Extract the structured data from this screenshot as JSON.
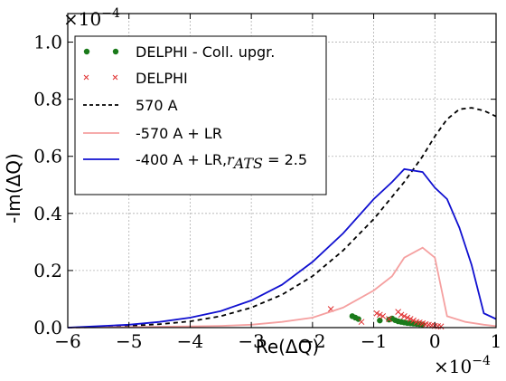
{
  "chart_data": {
    "type": "line",
    "xlabel": "Re(ΔQ)",
    "ylabel": "-Im(ΔQ)",
    "x_exponent": "×10",
    "x_exponent_power": "−4",
    "y_exponent": "×10",
    "y_exponent_power": "−4",
    "xlim": [
      -6,
      1
    ],
    "ylim": [
      0,
      1.1
    ],
    "xticks": [
      -6,
      -5,
      -4,
      -3,
      -2,
      -1,
      0,
      1
    ],
    "xtick_labels": [
      "−6",
      "−5",
      "−4",
      "−3",
      "−2",
      "−1",
      "0",
      "1"
    ],
    "yticks": [
      0.0,
      0.2,
      0.4,
      0.6,
      0.8,
      1.0
    ],
    "ytick_labels": [
      "0.0",
      "0.2",
      "0.4",
      "0.6",
      "0.8",
      "1.0"
    ],
    "grid": true,
    "legend_position": "top-left",
    "series": [
      {
        "name": "DELPHI - Coll. upgr.",
        "kind": "scatter",
        "marker": "dot",
        "color": "#1a7a1a",
        "x": [
          -1.35,
          -1.3,
          -1.25,
          -0.9,
          -0.75,
          -0.7,
          -0.65,
          -0.6,
          -0.55,
          -0.5,
          -0.45,
          -0.4,
          -0.35,
          -0.3,
          -0.25,
          -0.2
        ],
        "y": [
          0.04,
          0.035,
          0.03,
          0.025,
          0.028,
          0.032,
          0.026,
          0.022,
          0.02,
          0.018,
          0.016,
          0.015,
          0.014,
          0.013,
          0.012,
          0.011
        ]
      },
      {
        "name": "DELPHI",
        "kind": "scatter",
        "marker": "cross",
        "color": "#e03030",
        "x": [
          -1.7,
          -1.2,
          -0.95,
          -0.9,
          -0.85,
          -0.75,
          -0.6,
          -0.55,
          -0.5,
          -0.45,
          -0.4,
          -0.35,
          -0.3,
          -0.25,
          -0.2,
          -0.15,
          -0.1,
          -0.05,
          0.0,
          0.05,
          0.1
        ],
        "y": [
          0.065,
          0.02,
          0.05,
          0.045,
          0.04,
          0.03,
          0.055,
          0.045,
          0.04,
          0.035,
          0.03,
          0.025,
          0.02,
          0.018,
          0.015,
          0.012,
          0.01,
          0.008,
          0.006,
          0.005,
          0.004
        ]
      },
      {
        "name": "570 A",
        "kind": "line",
        "style": "dashed",
        "color": "#000000",
        "x": [
          -6,
          -5.5,
          -5,
          -4.5,
          -4,
          -3.5,
          -3,
          -2.5,
          -2,
          -1.5,
          -1,
          -0.5,
          -0.2,
          0,
          0.2,
          0.4,
          0.6,
          0.8,
          1.0
        ],
        "y": [
          0.0,
          0.002,
          0.006,
          0.012,
          0.022,
          0.04,
          0.07,
          0.115,
          0.18,
          0.27,
          0.38,
          0.51,
          0.6,
          0.67,
          0.73,
          0.765,
          0.77,
          0.76,
          0.74
        ]
      },
      {
        "name": "-570 A + LR",
        "kind": "line",
        "style": "solid",
        "color": "#f5a0a0",
        "x": [
          -6,
          -5,
          -4,
          -3.5,
          -3,
          -2.5,
          -2,
          -1.5,
          -1,
          -0.7,
          -0.5,
          -0.2,
          0,
          0.2,
          0.5,
          0.8,
          1.0
        ],
        "y": [
          0.0,
          0.002,
          0.004,
          0.006,
          0.01,
          0.02,
          0.035,
          0.07,
          0.13,
          0.18,
          0.245,
          0.28,
          0.245,
          0.04,
          0.02,
          0.01,
          0.005
        ]
      },
      {
        "name": "-400 A + LR,",
        "name_math": "r_ATS = 2.5",
        "kind": "line",
        "style": "solid",
        "color": "#1010d0",
        "x": [
          -6,
          -5,
          -4.5,
          -4,
          -3.5,
          -3,
          -2.5,
          -2,
          -1.5,
          -1,
          -0.7,
          -0.5,
          -0.2,
          0,
          0.2,
          0.4,
          0.6,
          0.8,
          1.0
        ],
        "y": [
          0.0,
          0.01,
          0.02,
          0.035,
          0.058,
          0.095,
          0.15,
          0.23,
          0.33,
          0.45,
          0.51,
          0.555,
          0.545,
          0.49,
          0.45,
          0.35,
          0.22,
          0.05,
          0.03
        ]
      }
    ]
  },
  "legend": {
    "items": [
      {
        "label": "DELPHI - Coll. upgr."
      },
      {
        "label": "DELPHI"
      },
      {
        "label": "570 A"
      },
      {
        "label": "-570 A + LR"
      },
      {
        "label": "-400 A + LR,",
        "math": "r",
        "math_sub": "ATS",
        "math_tail": " = 2.5"
      }
    ]
  }
}
